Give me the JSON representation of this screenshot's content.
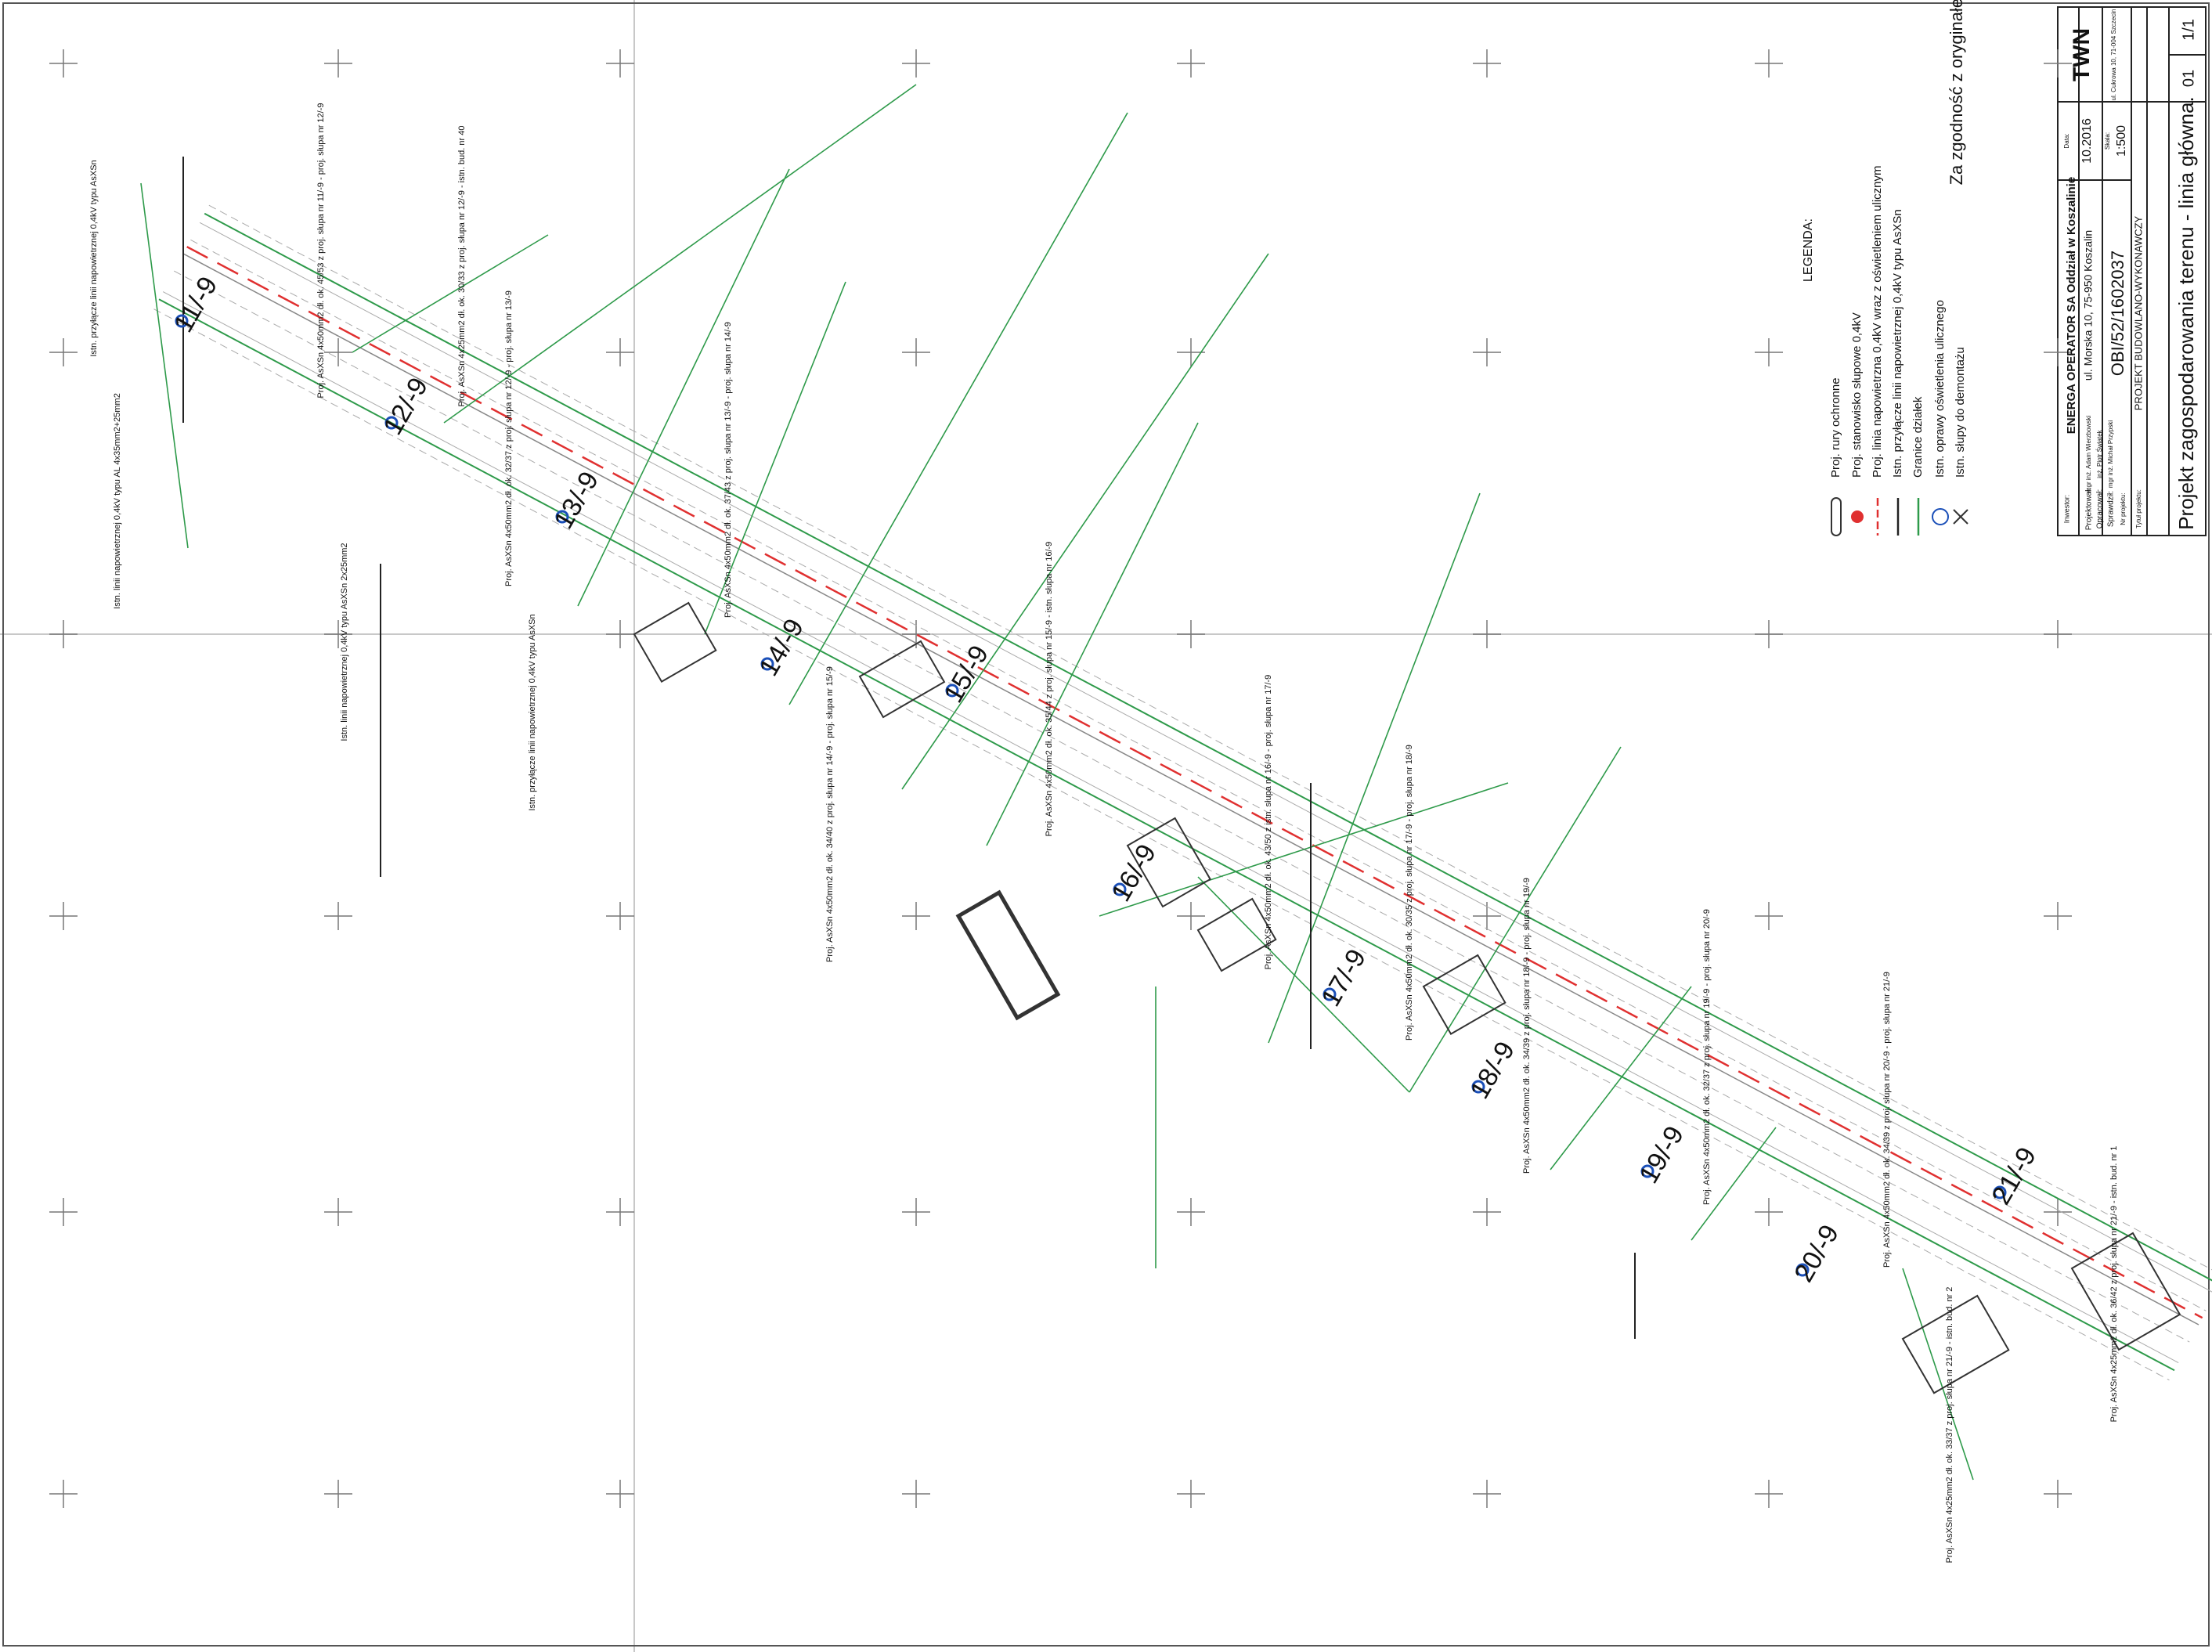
{
  "poles": [
    "11/-9",
    "12/-9",
    "13/-9",
    "14/-9",
    "15/-9",
    "16/-9",
    "17/-9",
    "18/-9",
    "19/-9",
    "20/-9",
    "21/-9"
  ],
  "legend": {
    "title": "LEGENDA:",
    "items": [
      "Proj. rury ochronne",
      "Proj. stanowisko słupowe 0,4kV",
      "Proj. linia napowietrzna 0,4kV wraz z oświetleniem ulicznym",
      "Istn. przyłącze linii napowietrznej 0,4kV typu AsXSn",
      "Granice działek",
      "Istn. oprawy oświetlenia ulicznego",
      "Istn. słupy do demontażu"
    ]
  },
  "title_block": {
    "investor_label": "Inwestor:",
    "investor": "ENERGA OPERATOR SA Oddział w Koszalinie",
    "address": "ul. Morska 10, 75-950 Koszalin",
    "company": "TWN",
    "company_address": "ul. Cukrowa 10, 71-004 Szczecin",
    "designed_label": "Projektował:",
    "drafted_label": "Opracował:",
    "checked_label": "Sprawdził:",
    "designer": "mgr inż. Adam Wierzbowski",
    "drafter": "inż. Piotr Świątek",
    "checker": "mgr inż. Michał Przypski",
    "date_label": "Data:",
    "date": "10.2016",
    "scale_label": "Skala:",
    "scale": "1:500",
    "project_no_label": "Nr projektu:",
    "project_no": "OBI/52/1602037",
    "project_type_label": "Tytuł projektu:",
    "project_type": "PROJEKT BUDOWLANO-WYKONAWCZY",
    "drawing_title": "Projekt zagospodarowania terenu - linia główna.",
    "drawing_no": "01",
    "sheet": "1/1",
    "stamp": "Za zgodność z oryginałem"
  },
  "annotations": [
    "Istn. przyłącze linii napowietrznej 0,4kV typu AsXSn",
    "Istn. linii napowietrznej 0,4kV typu AL 4x35mm2+25mm2",
    "Proj. AsXSn 4x50mm2 dł. ok. 45/53 z proj. słupa nr 11/-9 - proj. słupa nr 12/-9",
    "Proj. AsXSn 4x25mm2 dł. ok. 30/33 z proj. słupa nr 12/-9 - istn. bud. nr 40",
    "Proj. AsXSn 4x50mm2 dł. ok. 32/37 z proj. słupa nr 12/-9 - proj. słupa nr 13/-9",
    "Proj. AsXSn 4x50mm2 dł. ok. 37/43 z proj. słupa nr 13/-9 - proj. słupa nr 14/-9",
    "Istn. linii napowietrznej 0,4kV typu AsXSn 2x25mm2",
    "Istn. przyłącze linii napowietrznej 0,4kV typu AsXSn",
    "Proj. AsXSn 4x50mm2 dł. ok. 34/40 z proj. słupa nr 14/-9 - proj. słupa nr 15/-9",
    "Proj. AsXSn 4x50mm2 dł. ok. 35/44 z proj. słupa nr 15/-9 - istn. słupa nr 16/-9",
    "Proj. AsXSn 4x50mm2 dł. ok. 43/50 z istn. słupa nr 16/-9 - proj. słupa nr 17/-9",
    "Proj. AsXSn 4x50mm2 dł. ok. 30/35 z proj. słupa nr 17/-9 - proj. słupa nr 18/-9",
    "Proj. AsXSn 4x50mm2 dł. ok. 34/39 z proj. słupa nr 18/-9 - proj. słupa nr 19/-9",
    "Proj. AsXSn 4x50mm2 dł. ok. 32/37 z proj. słupa nr 19/-9 - proj. słupa nr 20/-9",
    "Proj. AsXSn 4x50mm2 dł. ok. 34/39 z proj. słupa nr 20/-9 - proj. słupa nr 21/-9",
    "Proj. AsXSn 4x25mm2 dł. ok. 36/42 z proj. słupa nr 21/-9 - istn. bud. nr 1",
    "Proj. AsXSn 4x25mm2 dł. ok. 33/37 z proj. słupa nr 21/-9 - istn. bud. nr 2"
  ]
}
